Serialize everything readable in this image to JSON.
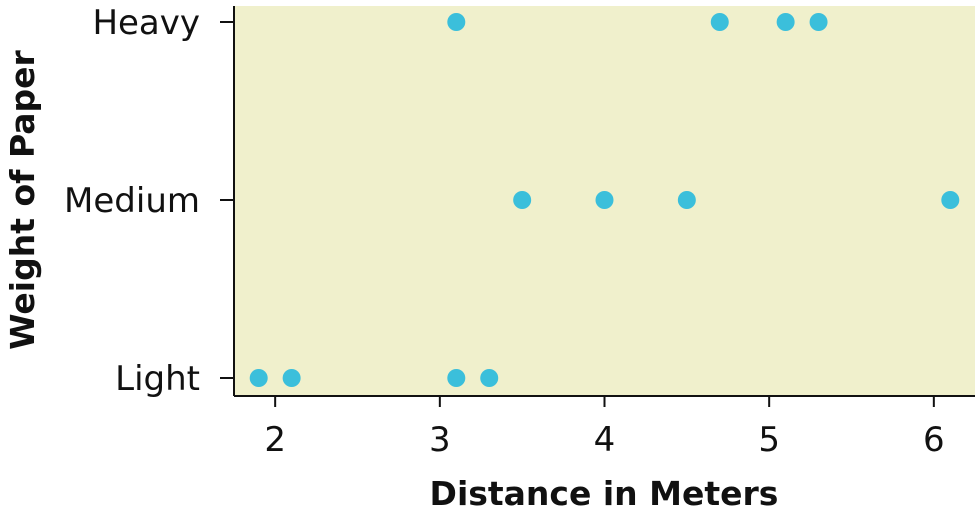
{
  "chart_data": {
    "type": "scatter",
    "title": "",
    "xlabel": "Distance in Meters",
    "ylabel": "Weight of Paper",
    "xlim": [
      1.75,
      6.25
    ],
    "x_ticks": [
      2,
      3,
      4,
      5,
      6
    ],
    "x_tick_labels": [
      "2",
      "3",
      "4",
      "5",
      "6"
    ],
    "y_categories": [
      "Light",
      "Medium",
      "Heavy"
    ],
    "points": [
      {
        "x": 1.9,
        "y": "Light"
      },
      {
        "x": 2.1,
        "y": "Light"
      },
      {
        "x": 3.1,
        "y": "Light"
      },
      {
        "x": 3.3,
        "y": "Light"
      },
      {
        "x": 3.5,
        "y": "Medium"
      },
      {
        "x": 4.0,
        "y": "Medium"
      },
      {
        "x": 4.5,
        "y": "Medium"
      },
      {
        "x": 6.1,
        "y": "Medium"
      },
      {
        "x": 3.1,
        "y": "Heavy"
      },
      {
        "x": 4.7,
        "y": "Heavy"
      },
      {
        "x": 5.1,
        "y": "Heavy"
      },
      {
        "x": 5.3,
        "y": "Heavy"
      }
    ],
    "grid": false,
    "colors": {
      "plot_background": "#f0f0cc",
      "point": "#3bbfdb",
      "axis": "#111111"
    }
  }
}
